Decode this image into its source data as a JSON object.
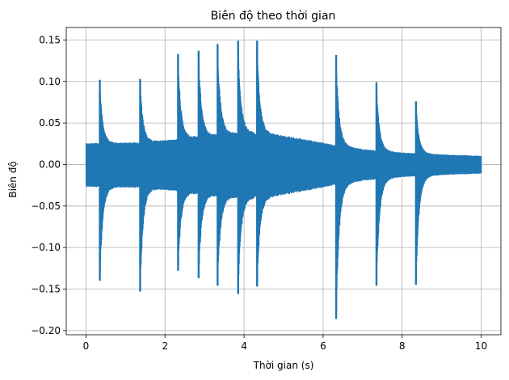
{
  "chart_data": {
    "type": "line",
    "title": "Biên độ theo thời gian",
    "xlabel": "Thời gian (s)",
    "ylabel": "Biên độ",
    "xlim": [
      -0.5,
      10.5
    ],
    "ylim": [
      -0.205,
      0.165
    ],
    "xticks": [
      0,
      2,
      4,
      6,
      8,
      10
    ],
    "xtick_labels": [
      "0",
      "2",
      "4",
      "6",
      "8",
      "10"
    ],
    "yticks": [
      -0.2,
      -0.15,
      -0.1,
      -0.05,
      0.0,
      0.05,
      0.1,
      0.15
    ],
    "ytick_labels": [
      "−0.20",
      "−0.15",
      "−0.10",
      "−0.05",
      "0.00",
      "0.05",
      "0.10",
      "0.15"
    ],
    "grid": true,
    "series": [
      {
        "color": "#1f77b4",
        "x_start": 0.0,
        "x_end": 10.0,
        "base_amplitude": 0.025,
        "onsets": [
          {
            "t": 0.0,
            "max": 0.025,
            "min": -0.025
          },
          {
            "t": 0.35,
            "max": 0.102,
            "min": -0.14
          },
          {
            "t": 1.37,
            "max": 0.103,
            "min": -0.153
          },
          {
            "t": 2.33,
            "max": 0.133,
            "min": -0.128
          },
          {
            "t": 2.85,
            "max": 0.137,
            "min": -0.137
          },
          {
            "t": 3.33,
            "max": 0.145,
            "min": -0.146
          },
          {
            "t": 3.85,
            "max": 0.149,
            "min": -0.156
          },
          {
            "t": 4.33,
            "max": 0.149,
            "min": -0.147
          },
          {
            "t": 6.33,
            "max": 0.132,
            "min": -0.186
          },
          {
            "t": 7.35,
            "max": 0.099,
            "min": -0.146
          },
          {
            "t": 8.35,
            "max": 0.076,
            "min": -0.145
          }
        ],
        "tail_amplitude": 0.01
      }
    ]
  }
}
